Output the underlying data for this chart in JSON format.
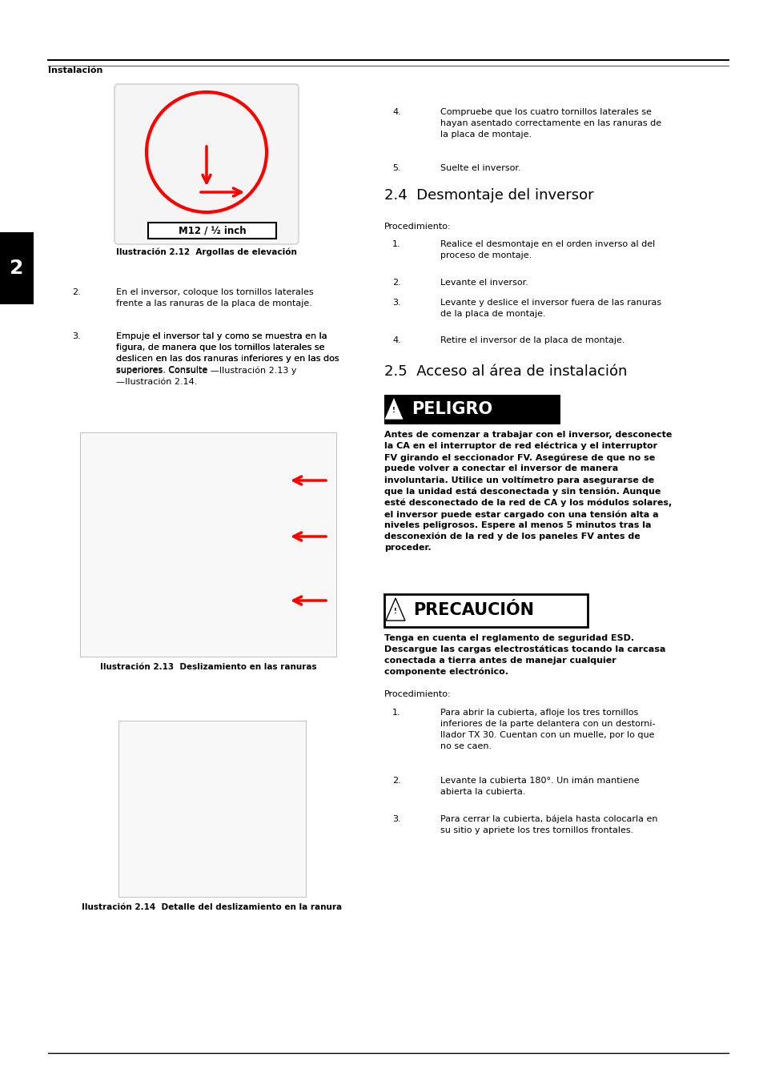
{
  "bg_color": "#ffffff",
  "header_line_color": "#000000",
  "header_text": "Instalación",
  "sidebar_color": "#000000",
  "sidebar_label": "2",
  "section_24_title": "2.4  Desmontaje del inversor",
  "section_25_title": "2.5  Acceso al área de instalación",
  "peligro_bg": "#000000",
  "peligro_fg": "#ffffff",
  "precaucion_bg": "#ffffff",
  "precaucion_fg": "#000000",
  "precaucion_border": "#000000",
  "font_size_body": 8.0,
  "font_size_section": 13.0,
  "font_size_header": 8.0,
  "font_size_sidebar": 18,
  "font_size_caption": 7.5,
  "font_size_warning": 15,
  "fig_caption_12": "Ilustración 2.12  Argollas de elevación",
  "fig_caption_13": "Ilustración 2.13  Deslizamiento en las ranuras",
  "fig_caption_14": "Ilustración 2.14  Detalle del deslizamiento en la ranura",
  "peligro_text": "Antes de comenzar a trabajar con el inversor, desconecte\nla CA en el interruptor de red eléctrica y el interruptor\nFV girando el seccionador FV. Asegúrese de que no se\npuede volver a conectar el inversor de manera\ninvoluntaria. Utilice un voltímetro para asegurarse de\nque la unidad está desconectada y sin tensión. Aunque\nesté desconectado de la red de CA y los módulos solares,\nel inversor puede estar cargado con una tensión alta a\nniveles peligrosos. Espere al menos 5 minutos tras la\ndesconexión de la red y de los paneles FV antes de\nproceder.",
  "precaucion_text": "Tenga en cuenta el reglamento de seguridad ESD.\nDescargue las cargas electrostáticas tocando la carcasa\nconectada a tierra antes de manejar cualquier\ncomponente electrónico."
}
